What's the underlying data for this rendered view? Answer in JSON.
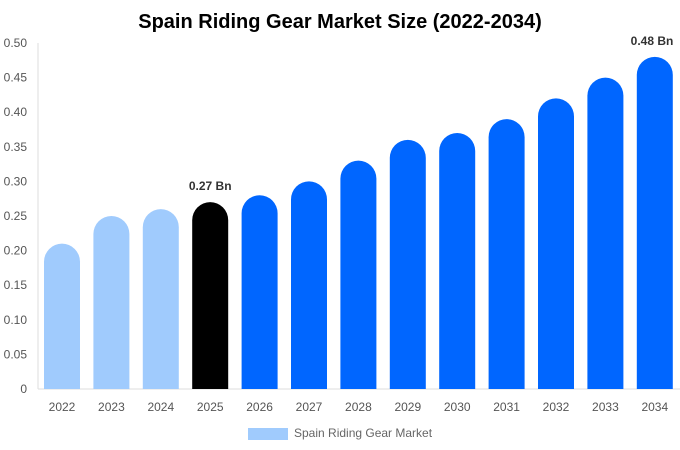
{
  "chart_data": {
    "type": "bar",
    "title": "Spain Riding Gear Market Size (2022-2034)",
    "categories": [
      "2022",
      "2023",
      "2024",
      "2025",
      "2026",
      "2027",
      "2028",
      "2029",
      "2030",
      "2031",
      "2032",
      "2033",
      "2034"
    ],
    "series": [
      {
        "name": "Spain Riding Gear Market",
        "values": [
          0.21,
          0.25,
          0.26,
          0.27,
          0.28,
          0.3,
          0.33,
          0.36,
          0.37,
          0.39,
          0.42,
          0.45,
          0.48
        ]
      }
    ],
    "ylim": [
      0,
      0.5
    ],
    "yticks": [
      "0",
      "0.05",
      "0.10",
      "0.15",
      "0.20",
      "0.25",
      "0.30",
      "0.35",
      "0.40",
      "0.45",
      "0.50"
    ],
    "data_labels": [
      {
        "category": "2025",
        "text": "0.27 Bn"
      },
      {
        "category": "2034",
        "text": "0.48 Bn"
      }
    ],
    "colors": {
      "historic": "#a0cbfd",
      "base_year": "#000000",
      "forecast": "#0066ff"
    },
    "grid": false,
    "legend_position": "bottom"
  }
}
